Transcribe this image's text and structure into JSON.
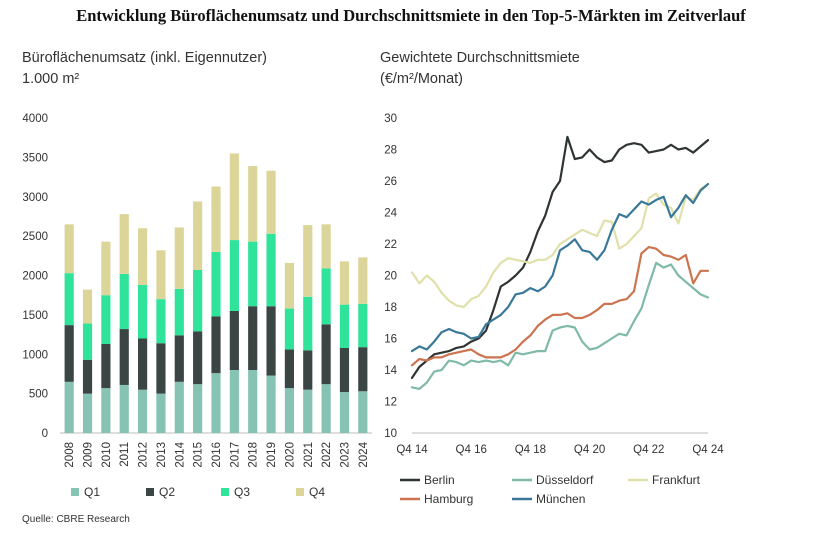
{
  "title": "Entwicklung Büroflächenumsatz und Durchschnittsmiete in den Top-5-Märkten im Zeitverlauf",
  "source": "Quelle: CBRE Research",
  "chart_data": [
    {
      "type": "bar",
      "stacked": true,
      "subtitle_line1": "Büroflächenumsatz (inkl. Eigennutzer)",
      "subtitle_line2": "1.000 m²",
      "categories": [
        "2008",
        "2009",
        "2010",
        "2011",
        "2012",
        "2013",
        "2014",
        "2015",
        "2016",
        "2017",
        "2018",
        "2019",
        "2020",
        "2021",
        "2022",
        "2023",
        "2024"
      ],
      "ylim": [
        0,
        4000
      ],
      "yticks": [
        0,
        500,
        1000,
        1500,
        2000,
        2500,
        3000,
        3500,
        4000
      ],
      "legend_position": "bottom",
      "series": [
        {
          "name": "Q1",
          "color": "#86c3b3",
          "values": [
            650,
            500,
            570,
            610,
            550,
            500,
            650,
            620,
            760,
            800,
            800,
            730,
            570,
            550,
            620,
            520,
            530
          ]
        },
        {
          "name": "Q2",
          "color": "#3b4543",
          "values": [
            720,
            430,
            560,
            710,
            650,
            640,
            590,
            670,
            720,
            750,
            810,
            880,
            490,
            500,
            760,
            560,
            560
          ]
        },
        {
          "name": "Q3",
          "color": "#2fe39a",
          "values": [
            660,
            460,
            620,
            700,
            680,
            560,
            590,
            780,
            820,
            900,
            820,
            920,
            520,
            680,
            710,
            550,
            550
          ]
        },
        {
          "name": "Q4",
          "color": "#dbd59a",
          "values": [
            620,
            430,
            680,
            760,
            720,
            620,
            780,
            870,
            830,
            1100,
            960,
            800,
            580,
            910,
            560,
            550,
            590
          ]
        }
      ]
    },
    {
      "type": "line",
      "subtitle_line1": "Gewichtete Durchschnittsmiete",
      "subtitle_line2": "(€/m²/Monat)",
      "x_labels": [
        "Q4 14",
        "Q4 16",
        "Q4 18",
        "Q4 20",
        "Q4 22",
        "Q4 24"
      ],
      "ylim": [
        10,
        30
      ],
      "yticks": [
        10,
        12,
        14,
        16,
        18,
        20,
        22,
        24,
        26,
        28,
        30
      ],
      "x_start": "Q4 2014",
      "x_end": "Q4 2024",
      "legend_position": "bottom",
      "series": [
        {
          "name": "Berlin",
          "color": "#2f3533",
          "values": [
            13.5,
            14.2,
            14.6,
            15.0,
            15.1,
            15.2,
            15.4,
            15.5,
            15.8,
            16.0,
            16.5,
            17.8,
            19.3,
            19.6,
            20.0,
            20.5,
            21.5,
            22.8,
            23.8,
            25.3,
            26.0,
            28.8,
            27.4,
            27.5,
            28.0,
            27.5,
            27.2,
            27.3,
            28.0,
            28.3,
            28.4,
            28.3,
            27.8,
            27.9,
            28.0,
            28.3,
            28.0,
            28.1,
            27.8,
            28.2,
            28.6
          ]
        },
        {
          "name": "Düsseldorf",
          "color": "#7fb9a8",
          "values": [
            12.9,
            12.8,
            13.2,
            13.9,
            14.0,
            14.6,
            14.5,
            14.3,
            14.6,
            14.5,
            14.6,
            14.5,
            14.6,
            14.3,
            15.1,
            15.0,
            15.1,
            15.2,
            15.2,
            16.5,
            16.7,
            16.8,
            16.7,
            15.8,
            15.3,
            15.4,
            15.7,
            16.0,
            16.3,
            16.2,
            17.1,
            17.9,
            19.4,
            20.8,
            20.5,
            20.7,
            20.0,
            19.6,
            19.2,
            18.8,
            18.6
          ]
        },
        {
          "name": "Frankfurt",
          "color": "#dfe0aa",
          "values": [
            20.2,
            19.5,
            20.0,
            19.6,
            18.9,
            18.4,
            18.1,
            18.0,
            18.5,
            18.7,
            19.3,
            20.2,
            20.8,
            21.1,
            21.0,
            20.9,
            20.8,
            21.0,
            21.0,
            21.3,
            22.0,
            22.3,
            22.6,
            22.9,
            22.7,
            22.5,
            23.5,
            23.4,
            21.7,
            22.0,
            22.5,
            23.0,
            24.9,
            25.2,
            24.5,
            24.3,
            23.3,
            25.0,
            24.8,
            25.5,
            25.8
          ]
        },
        {
          "name": "Hamburg",
          "color": "#cc7450",
          "values": [
            14.3,
            14.7,
            14.6,
            14.8,
            14.8,
            15.0,
            15.1,
            15.2,
            15.3,
            15.0,
            14.8,
            14.8,
            14.8,
            15.0,
            15.3,
            15.8,
            16.2,
            16.8,
            17.2,
            17.5,
            17.5,
            17.6,
            17.3,
            17.3,
            17.5,
            17.8,
            18.2,
            18.2,
            18.4,
            18.5,
            19.0,
            21.4,
            21.8,
            21.7,
            21.3,
            21.2,
            21.0,
            21.3,
            19.5,
            20.3,
            20.3
          ]
        },
        {
          "name": "München",
          "color": "#3a7899",
          "values": [
            15.2,
            15.5,
            15.3,
            15.8,
            16.4,
            16.6,
            16.4,
            16.3,
            16.0,
            16.1,
            16.9,
            17.2,
            17.5,
            18.0,
            18.8,
            18.9,
            19.2,
            19.0,
            19.3,
            20.0,
            21.6,
            21.9,
            22.3,
            21.6,
            21.5,
            21.0,
            21.6,
            22.9,
            23.9,
            23.7,
            24.2,
            24.7,
            24.5,
            24.8,
            25.0,
            23.7,
            24.3,
            25.1,
            24.6,
            25.4,
            25.8
          ]
        }
      ]
    }
  ]
}
